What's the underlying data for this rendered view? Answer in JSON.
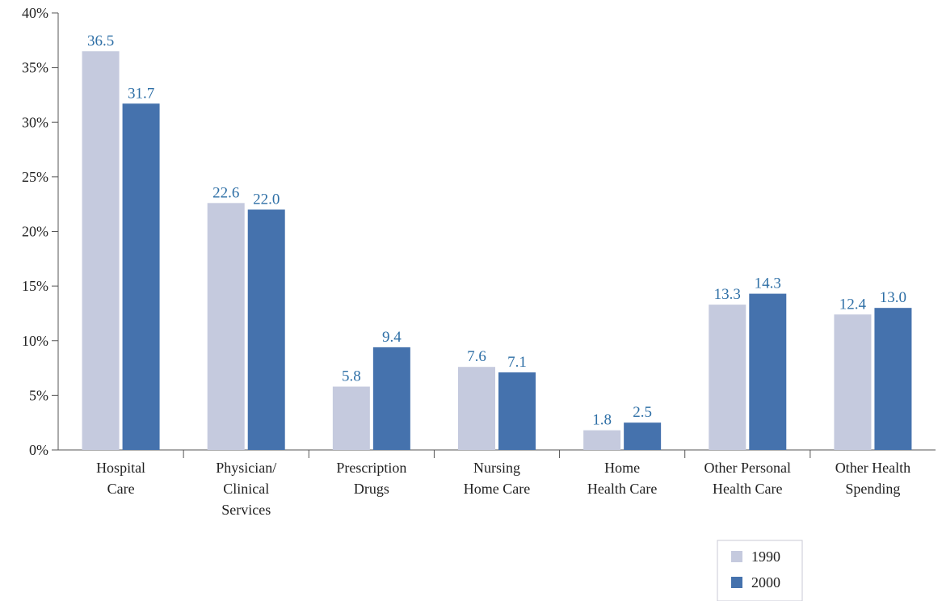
{
  "chart_data": {
    "type": "bar",
    "categories": [
      [
        "Hospital",
        "Care"
      ],
      [
        "Physician/",
        "Clinical",
        "Services"
      ],
      [
        "Prescription",
        "Drugs"
      ],
      [
        "Nursing",
        "Home Care"
      ],
      [
        "Home",
        "Health Care"
      ],
      [
        "Other Personal",
        "Health Care"
      ],
      [
        "Other Health",
        "Spending"
      ]
    ],
    "series": [
      {
        "name": "1990",
        "color": "#c5cade",
        "values": [
          36.5,
          22.6,
          5.8,
          7.6,
          1.8,
          13.3,
          12.4
        ],
        "labels": [
          "36.5",
          "22.6",
          "5.8",
          "7.6",
          "1.8",
          "13.3",
          "12.4"
        ]
      },
      {
        "name": "2000",
        "color": "#4572ad",
        "values": [
          31.7,
          22.0,
          9.4,
          7.1,
          2.5,
          14.3,
          13.0
        ],
        "labels": [
          "31.7",
          "22.0",
          "9.4",
          "7.1",
          "2.5",
          "14.3",
          "13.0"
        ]
      }
    ],
    "ylim": [
      0,
      40
    ],
    "yticks": [
      0,
      5,
      10,
      15,
      20,
      25,
      30,
      35,
      40
    ],
    "ytick_labels": [
      "0%",
      "5%",
      "10%",
      "15%",
      "20%",
      "25%",
      "30%",
      "35%",
      "40%"
    ],
    "title": "",
    "xlabel": "",
    "ylabel": "",
    "grid": false,
    "legend_position": "bottom-right"
  }
}
